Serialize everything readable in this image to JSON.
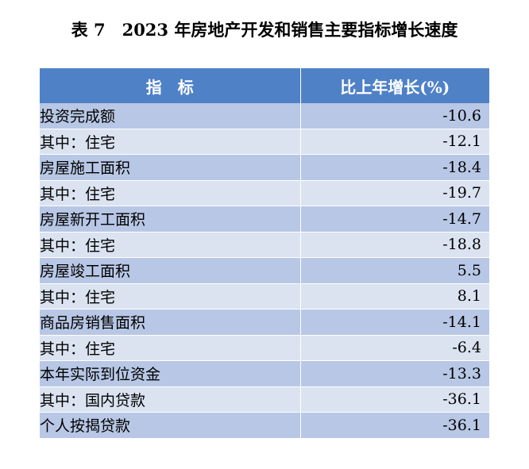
{
  "title": "表 7　2023 年房地产开发和销售主要指标增长速度",
  "table": {
    "headers": [
      "指　标",
      "比上年增长(%)"
    ],
    "rows": [
      {
        "label": "投资完成额",
        "value": "-10.6",
        "level": 0
      },
      {
        "label": "其中：住宅",
        "value": "-12.1",
        "level": 1
      },
      {
        "label": "房屋施工面积",
        "value": "-18.4",
        "level": 0
      },
      {
        "label": "其中：住宅",
        "value": "-19.7",
        "level": 1
      },
      {
        "label": "房屋新开工面积",
        "value": "-14.7",
        "level": 0
      },
      {
        "label": "其中：住宅",
        "value": "-18.8",
        "level": 1
      },
      {
        "label": "房屋竣工面积",
        "value": "5.5",
        "level": 0
      },
      {
        "label": "其中：住宅",
        "value": "8.1",
        "level": 1
      },
      {
        "label": "商品房销售面积",
        "value": "-14.1",
        "level": 0
      },
      {
        "label": "其中：住宅",
        "value": "-6.4",
        "level": 1
      },
      {
        "label": "本年实际到位资金",
        "value": "-13.3",
        "level": 0
      },
      {
        "label": "其中：国内贷款",
        "value": "-36.1",
        "level": 1
      },
      {
        "label": "个人按揭贷款",
        "value": "-36.1",
        "level": 2
      }
    ]
  },
  "colors": {
    "header_bg": "#4f81c7",
    "row_odd": "#b8c7e5",
    "row_even": "#dbe3f1"
  }
}
